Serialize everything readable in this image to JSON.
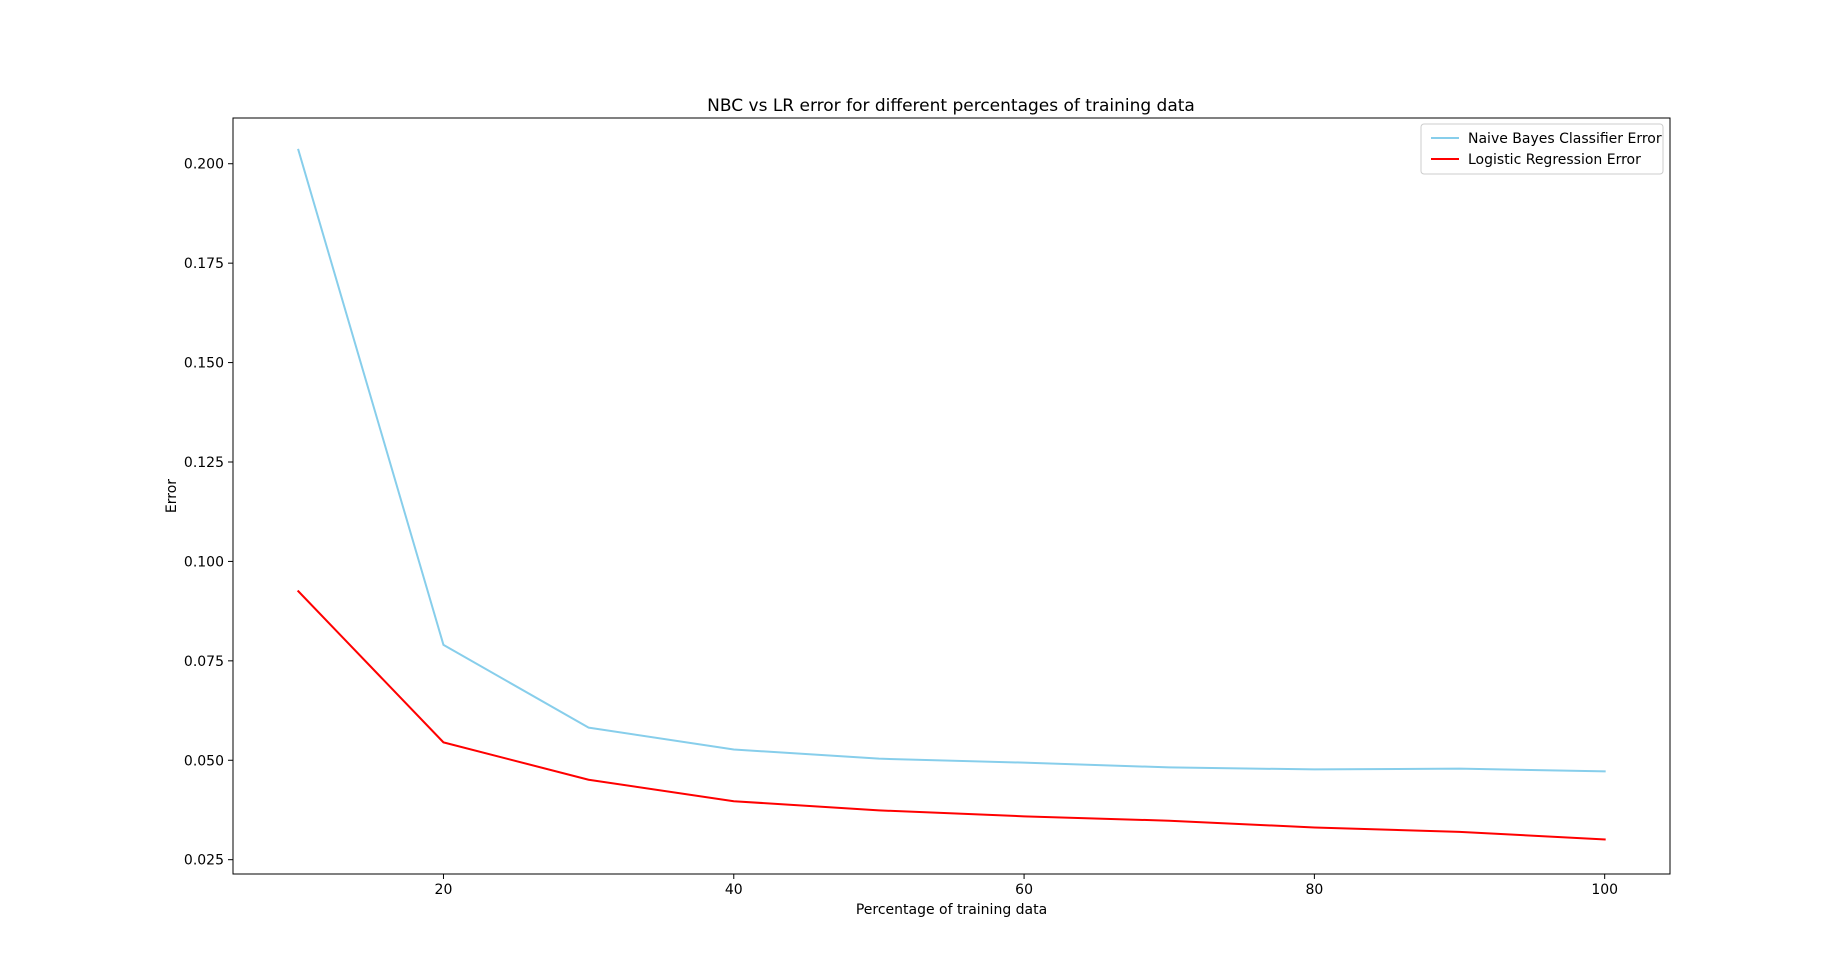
{
  "chart_data": {
    "type": "line",
    "title": "NBC vs LR error for different percentages of training data",
    "xlabel": "Percentage of training data",
    "ylabel": "Error",
    "xlim": [
      5.5,
      104.5
    ],
    "ylim": [
      0.0214,
      0.2115
    ],
    "xticks": [
      20,
      40,
      60,
      80,
      100
    ],
    "yticks": [
      0.025,
      0.05,
      0.075,
      0.1,
      0.125,
      0.15,
      0.175,
      0.2
    ],
    "ytick_labels": [
      "0.025",
      "0.050",
      "0.075",
      "0.100",
      "0.125",
      "0.150",
      "0.175",
      "0.200"
    ],
    "grid": false,
    "legend_position": "top-right",
    "x": [
      10,
      20,
      30,
      40,
      50,
      60,
      70,
      80,
      90,
      100
    ],
    "series": [
      {
        "name": "Naive Bayes Classifier Error",
        "color": "#87ceeb",
        "values": [
          0.2035,
          0.079,
          0.0582,
          0.0527,
          0.0504,
          0.0494,
          0.0482,
          0.0477,
          0.0479,
          0.0472
        ]
      },
      {
        "name": "Logistic Regression Error",
        "color": "#ff0000",
        "values": [
          0.0925,
          0.0545,
          0.0451,
          0.0397,
          0.0374,
          0.0359,
          0.0348,
          0.0331,
          0.032,
          0.0301
        ]
      }
    ]
  }
}
